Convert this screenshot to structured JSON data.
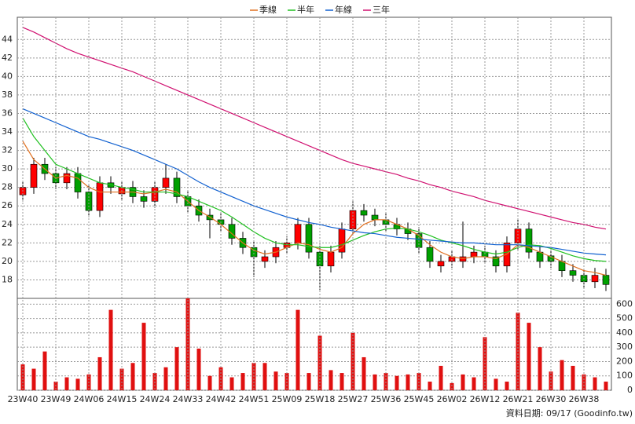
{
  "chart_data": [
    {
      "type": "candlestick",
      "open": [
        27.2,
        28,
        30.5,
        29.5,
        28.5,
        29.5,
        27.5,
        25.5,
        28.5,
        27.3,
        28,
        27,
        26.5,
        28,
        29,
        27,
        26,
        25,
        24.5,
        24,
        22.5,
        21.5,
        20,
        20.5,
        21.5,
        22,
        24,
        21,
        19.5,
        21,
        23.5,
        25.5,
        25,
        24.5,
        24,
        23.5,
        23,
        21.5,
        19.5,
        20,
        20,
        20.5,
        21,
        20.5,
        19.5,
        22,
        23.5,
        21,
        20.6,
        20,
        19,
        18.5,
        17.8,
        18.5
      ],
      "high": [
        28.7,
        31.2,
        31.2,
        30.2,
        30.2,
        30.2,
        28.2,
        29.2,
        29.2,
        28.7,
        28.7,
        27.7,
        28.7,
        30.5,
        29.7,
        27.7,
        26.7,
        25.7,
        25.2,
        24.7,
        23.2,
        22.2,
        21.2,
        22.2,
        22.7,
        24.7,
        24.7,
        21.7,
        21.7,
        24.2,
        26.5,
        26.2,
        25.7,
        25.2,
        24.7,
        24.2,
        23.7,
        22.2,
        20.7,
        21.2,
        24.3,
        21.7,
        21.7,
        21.2,
        22.7,
        24.5,
        24.2,
        21.7,
        21.3,
        20.7,
        19.7,
        19.2,
        19.3,
        19.2
      ],
      "low": [
        26.5,
        27.3,
        28.8,
        27.8,
        27.8,
        26.8,
        24.8,
        24.8,
        27.3,
        26.6,
        26.3,
        25.8,
        25.8,
        27.3,
        26.3,
        25.3,
        24.3,
        22.5,
        23.3,
        21.8,
        20.8,
        18.3,
        19.3,
        19.8,
        20.8,
        21.3,
        20.3,
        16.9,
        18.8,
        20.3,
        22.8,
        24.3,
        23.8,
        23.3,
        22.8,
        22.3,
        20.8,
        19.3,
        18.8,
        19.3,
        19.3,
        19.8,
        19.8,
        18.8,
        18.8,
        21.3,
        20.3,
        19.3,
        19.3,
        18.3,
        17.8,
        17.1,
        17.1,
        16.8
      ],
      "close": [
        28,
        30.5,
        29.5,
        28.5,
        29.5,
        27.5,
        25.5,
        28.5,
        28,
        28,
        27,
        26.5,
        28,
        29,
        27,
        26,
        25,
        24.5,
        24,
        22.5,
        21.5,
        20.5,
        20.5,
        21.5,
        22,
        24,
        21,
        19.5,
        21,
        23.5,
        25.5,
        25,
        24.5,
        24,
        23.5,
        23,
        21.5,
        20,
        20,
        20.5,
        20.5,
        21,
        20.5,
        19.5,
        22,
        23.5,
        21,
        20,
        20,
        19,
        18.5,
        17.8,
        18.5,
        17.5
      ],
      "up_color": "#ff0000",
      "down_color": "#00a000",
      "series": [
        {
          "name": "季線",
          "color": "#e07020",
          "values": [
            33,
            31,
            30,
            29,
            29.3,
            29,
            28,
            27.5,
            27.5,
            27.5,
            27.5,
            27.3,
            27.5,
            27.8,
            27.5,
            26.5,
            25.5,
            24.8,
            24,
            23,
            22,
            21.2,
            20.8,
            21,
            21.5,
            22,
            21.8,
            21.3,
            21,
            21.5,
            23,
            24,
            24.5,
            24.5,
            24,
            23.5,
            22.8,
            21.8,
            21,
            20.5,
            20.3,
            20.5,
            20.5,
            20.3,
            20.8,
            21.8,
            21.5,
            21,
            20.5,
            20,
            19.5,
            19,
            18.8,
            18.5
          ]
        },
        {
          "name": "半年",
          "color": "#20c020",
          "values": [
            35.5,
            33.5,
            32,
            30.5,
            30,
            29.5,
            29,
            28.5,
            28.3,
            28,
            27.8,
            27.5,
            27.5,
            27.5,
            27.3,
            27,
            26.5,
            26,
            25.5,
            24.8,
            24,
            23.2,
            22.5,
            22,
            21.8,
            21.8,
            21.6,
            21.5,
            21.5,
            21.8,
            22.3,
            22.8,
            23.2,
            23.5,
            23.6,
            23.5,
            23.2,
            22.8,
            22.3,
            22,
            21.7,
            21.3,
            21,
            20.8,
            21,
            21.5,
            21.8,
            21.7,
            21.4,
            21,
            20.6,
            20.3,
            20.1,
            20
          ]
        },
        {
          "name": "年線",
          "color": "#1060d0",
          "values": [
            36.5,
            36,
            35.5,
            35,
            34.5,
            34,
            33.5,
            33.2,
            32.8,
            32.4,
            32,
            31.5,
            31,
            30.5,
            30,
            29.3,
            28.6,
            28,
            27.5,
            27,
            26.5,
            26,
            25.6,
            25.2,
            24.8,
            24.5,
            24.2,
            24,
            23.7,
            23.5,
            23.3,
            23.1,
            23,
            22.8,
            22.6,
            22.5,
            22.4,
            22.3,
            22.2,
            22.1,
            22,
            22,
            21.9,
            21.8,
            21.8,
            21.8,
            21.7,
            21.6,
            21.5,
            21.3,
            21.1,
            20.9,
            20.8,
            20.7
          ]
        },
        {
          "name": "三年",
          "color": "#d01070",
          "values": [
            45.3,
            44.8,
            44.2,
            43.6,
            43,
            42.5,
            42.1,
            41.7,
            41.3,
            40.9,
            40.5,
            40,
            39.5,
            39,
            38.5,
            38,
            37.5,
            37,
            36.5,
            36,
            35.5,
            35,
            34.5,
            34,
            33.5,
            33,
            32.5,
            32,
            31.5,
            31,
            30.6,
            30.3,
            30,
            29.7,
            29.4,
            29,
            28.7,
            28.3,
            28,
            27.6,
            27.3,
            27,
            26.6,
            26.3,
            26,
            25.7,
            25.4,
            25.1,
            24.8,
            24.5,
            24.2,
            24,
            23.7,
            23.5
          ]
        }
      ],
      "ylim": [
        16,
        46.4
      ],
      "yticks": [
        18,
        20,
        22,
        24,
        26,
        28,
        30,
        32,
        34,
        36,
        38,
        40,
        42,
        44
      ],
      "grid": true
    },
    {
      "type": "bar",
      "categories": [
        "23W40",
        null,
        null,
        "23W49",
        null,
        null,
        "24W06",
        null,
        null,
        "24W15",
        null,
        null,
        "24W24",
        null,
        null,
        "24W33",
        null,
        null,
        "24W42",
        null,
        null,
        "24W51",
        null,
        null,
        "25W09",
        null,
        null,
        "25W18",
        null,
        null,
        "25W27",
        null,
        null,
        "25W36",
        null,
        null,
        "25W45",
        null,
        null,
        "26W02",
        null,
        null,
        "26W12",
        null,
        null,
        "26W21",
        null,
        null,
        "26W30",
        null,
        null,
        "26W38",
        null,
        null
      ],
      "values": [
        180,
        150,
        270,
        60,
        90,
        80,
        110,
        230,
        560,
        150,
        190,
        470,
        120,
        160,
        300,
        640,
        290,
        100,
        160,
        90,
        120,
        190,
        190,
        130,
        120,
        560,
        120,
        380,
        140,
        120,
        400,
        230,
        110,
        120,
        100,
        110,
        120,
        60,
        170,
        50,
        110,
        90,
        370,
        80,
        60,
        540,
        470,
        300,
        130,
        210,
        170,
        110,
        90,
        60
      ],
      "color": "#e01010",
      "ylim": [
        0,
        640
      ],
      "yticks": [
        0,
        100,
        200,
        300,
        400,
        500,
        600
      ],
      "grid": true,
      "note": "資料日期: 09/17  (Goodinfo.tw)"
    }
  ]
}
